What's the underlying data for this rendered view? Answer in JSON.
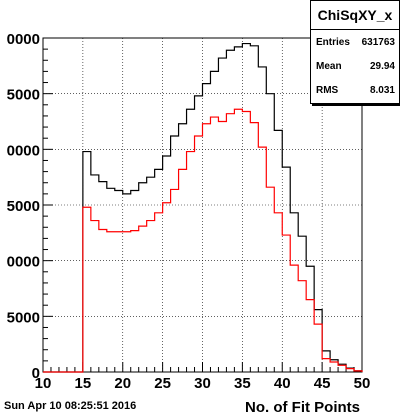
{
  "chart_data": {
    "type": "step",
    "xlabel": "No. of Fit Points",
    "ylabel": "",
    "xlim": [
      10,
      50
    ],
    "ylim": [
      0,
      30000
    ],
    "x_tick_labels": [
      "10",
      "15",
      "20",
      "25",
      "30",
      "35",
      "40",
      "45",
      "50"
    ],
    "y_tick_labels_visible": [
      "0",
      "5000",
      "0000",
      "5000",
      "0000",
      "5000",
      "0000"
    ],
    "grid": true,
    "series": [
      {
        "color": "#000000",
        "bin_edges": [
          10,
          11,
          12,
          13,
          14,
          15,
          16,
          17,
          18,
          19,
          20,
          21,
          22,
          23,
          24,
          25,
          26,
          27,
          28,
          29,
          30,
          31,
          32,
          33,
          34,
          35,
          36,
          37,
          38,
          39,
          40,
          41,
          42,
          43,
          44,
          45,
          46,
          47,
          48,
          49,
          50
        ],
        "values": [
          0,
          0,
          0,
          0,
          0,
          19800,
          17700,
          17100,
          16500,
          16300,
          16000,
          16300,
          17000,
          17500,
          18200,
          19400,
          21200,
          22300,
          23600,
          24800,
          25900,
          27000,
          28200,
          28900,
          29200,
          29500,
          29300,
          27400,
          25000,
          21700,
          18400,
          14300,
          12200,
          9500,
          5600,
          1900,
          1100,
          700,
          350,
          100
        ]
      },
      {
        "color": "#ff0000",
        "bin_edges": [
          10,
          11,
          12,
          13,
          14,
          15,
          16,
          17,
          18,
          19,
          20,
          21,
          22,
          23,
          24,
          25,
          26,
          27,
          28,
          29,
          30,
          31,
          32,
          33,
          34,
          35,
          36,
          37,
          38,
          39,
          40,
          41,
          42,
          43,
          44,
          45,
          46,
          47,
          48,
          49,
          50
        ],
        "values": [
          0,
          0,
          0,
          0,
          0,
          14800,
          13600,
          12800,
          12600,
          12600,
          12600,
          12700,
          13100,
          13600,
          14300,
          15200,
          16400,
          18200,
          19800,
          21200,
          22300,
          22900,
          22500,
          23200,
          23600,
          23400,
          22400,
          20200,
          16600,
          14300,
          12300,
          9600,
          8200,
          6500,
          4300,
          1200,
          900,
          600,
          300,
          100
        ]
      }
    ]
  },
  "stats": {
    "title": "ChiSqXY_x",
    "rows": [
      {
        "key": "Entries",
        "value": "631763"
      },
      {
        "key": "Mean",
        "value": "29.94"
      },
      {
        "key": "RMS",
        "value": "8.031"
      }
    ]
  },
  "footer": {
    "date": "Sun Apr 10 08:25:51 2016"
  }
}
